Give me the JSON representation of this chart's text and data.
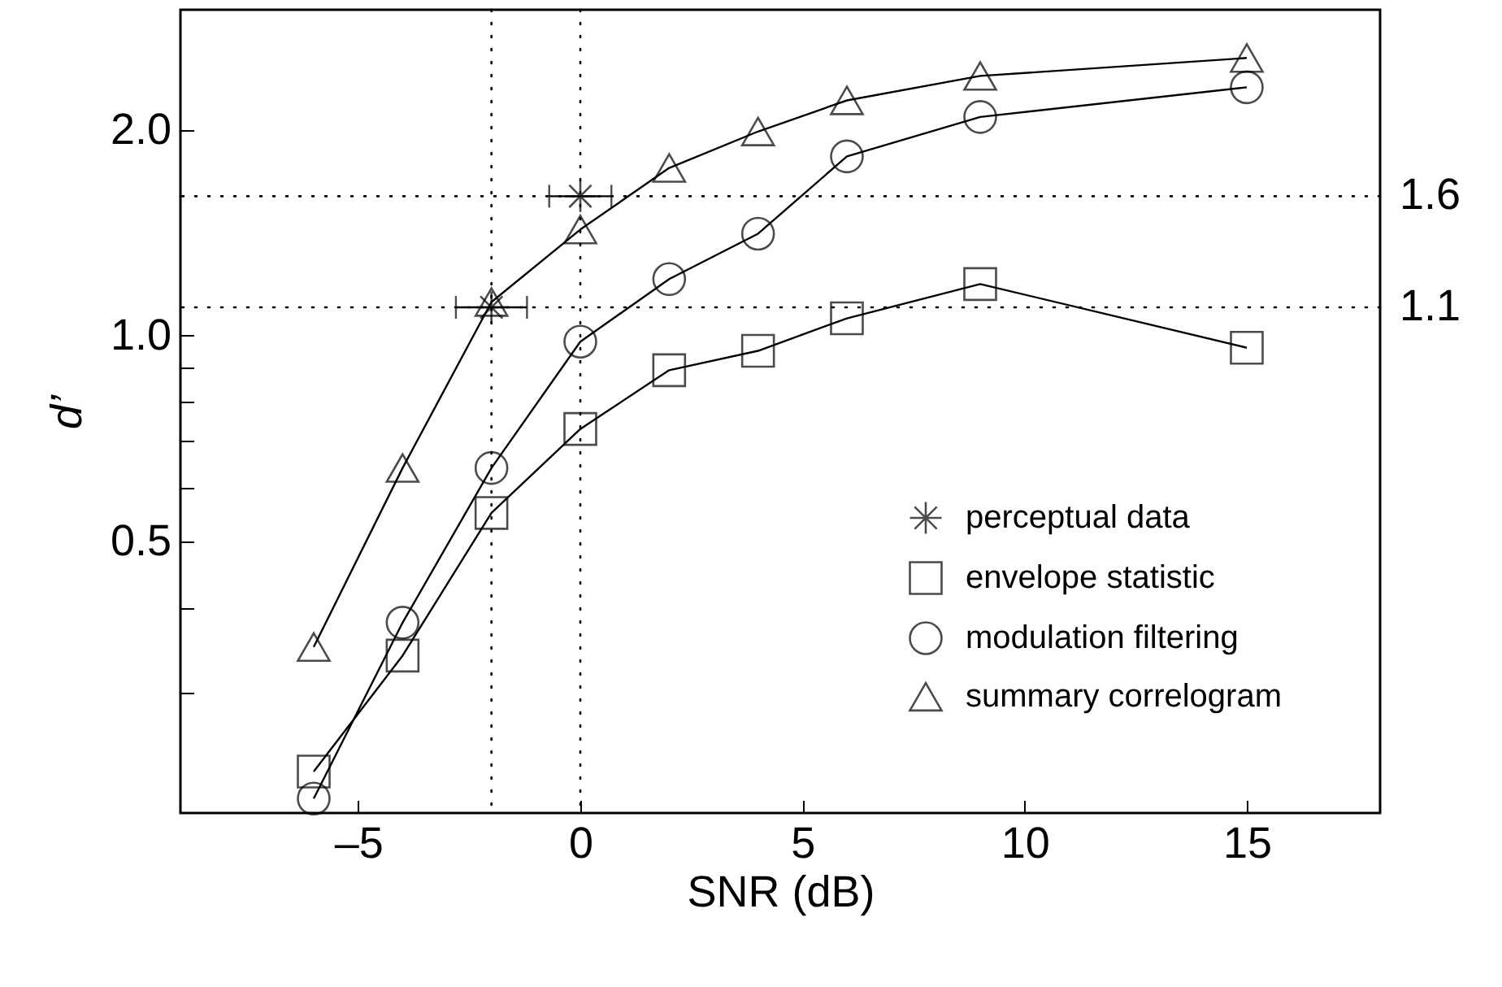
{
  "chart_data": {
    "type": "line",
    "xlabel": "SNR (dB)",
    "ylabel": "d’",
    "log": "y",
    "x": [
      -6,
      -4,
      -2,
      0,
      2,
      4,
      6,
      9,
      15
    ],
    "series": [
      {
        "name": "perceptual data",
        "type": "scatter",
        "color": "#000000",
        "marker": "cross",
        "x": [
          -2,
          0
        ],
        "values": [
          1.1,
          1.6
        ],
        "xerrors": [
          0.8,
          0.7
        ]
      },
      {
        "name": "envelope statistic",
        "color": "#000000",
        "marker": "square",
        "values": [
          0.23,
          0.34,
          0.55,
          0.73,
          0.89,
          0.95,
          1.06,
          1.19,
          0.96
        ]
      },
      {
        "name": "modulation filtering",
        "color": "#000000",
        "marker": "circle",
        "values": [
          0.21,
          0.38,
          0.64,
          0.98,
          1.21,
          1.41,
          1.83,
          2.09,
          2.31
        ]
      },
      {
        "name": "summary correlogram",
        "color": "#000000",
        "marker": "triangle",
        "values": [
          0.35,
          0.64,
          1.12,
          1.43,
          1.76,
          1.99,
          2.21,
          2.4,
          2.55
        ]
      }
    ],
    "xlim": [
      -9,
      18
    ],
    "xticks": [
      {
        "value": -5,
        "label": "–5"
      },
      0,
      5,
      10,
      15
    ],
    "ylim": [
      0.2,
      3
    ],
    "yticks": [
      {
        "value": 0.3,
        "label": null
      },
      {
        "value": 0.4,
        "label": null
      },
      {
        "value": 0.5,
        "label": "0.5"
      },
      {
        "value": 0.6,
        "label": null
      },
      {
        "value": 0.7,
        "label": null
      },
      {
        "value": 0.8,
        "label": null
      },
      {
        "value": 0.9,
        "label": null
      },
      {
        "value": 1,
        "label": "1.0"
      },
      {
        "value": 2,
        "label": "2.0"
      }
    ],
    "ref_lines": [
      {
        "axis": "y",
        "value": 1.6,
        "label": "1.6",
        "line_style": "dotted",
        "color": "#000000"
      },
      {
        "axis": "y",
        "value": 1.1,
        "label": "1.1",
        "line_style": "dotted",
        "color": "#000000"
      },
      {
        "axis": "x",
        "value": -2,
        "line_style": "dotted",
        "color": "#000000"
      },
      {
        "axis": "x",
        "value": 0,
        "line_style": "dotted",
        "color": "#000000"
      }
    ],
    "grid": false,
    "legend": "bottom right"
  }
}
